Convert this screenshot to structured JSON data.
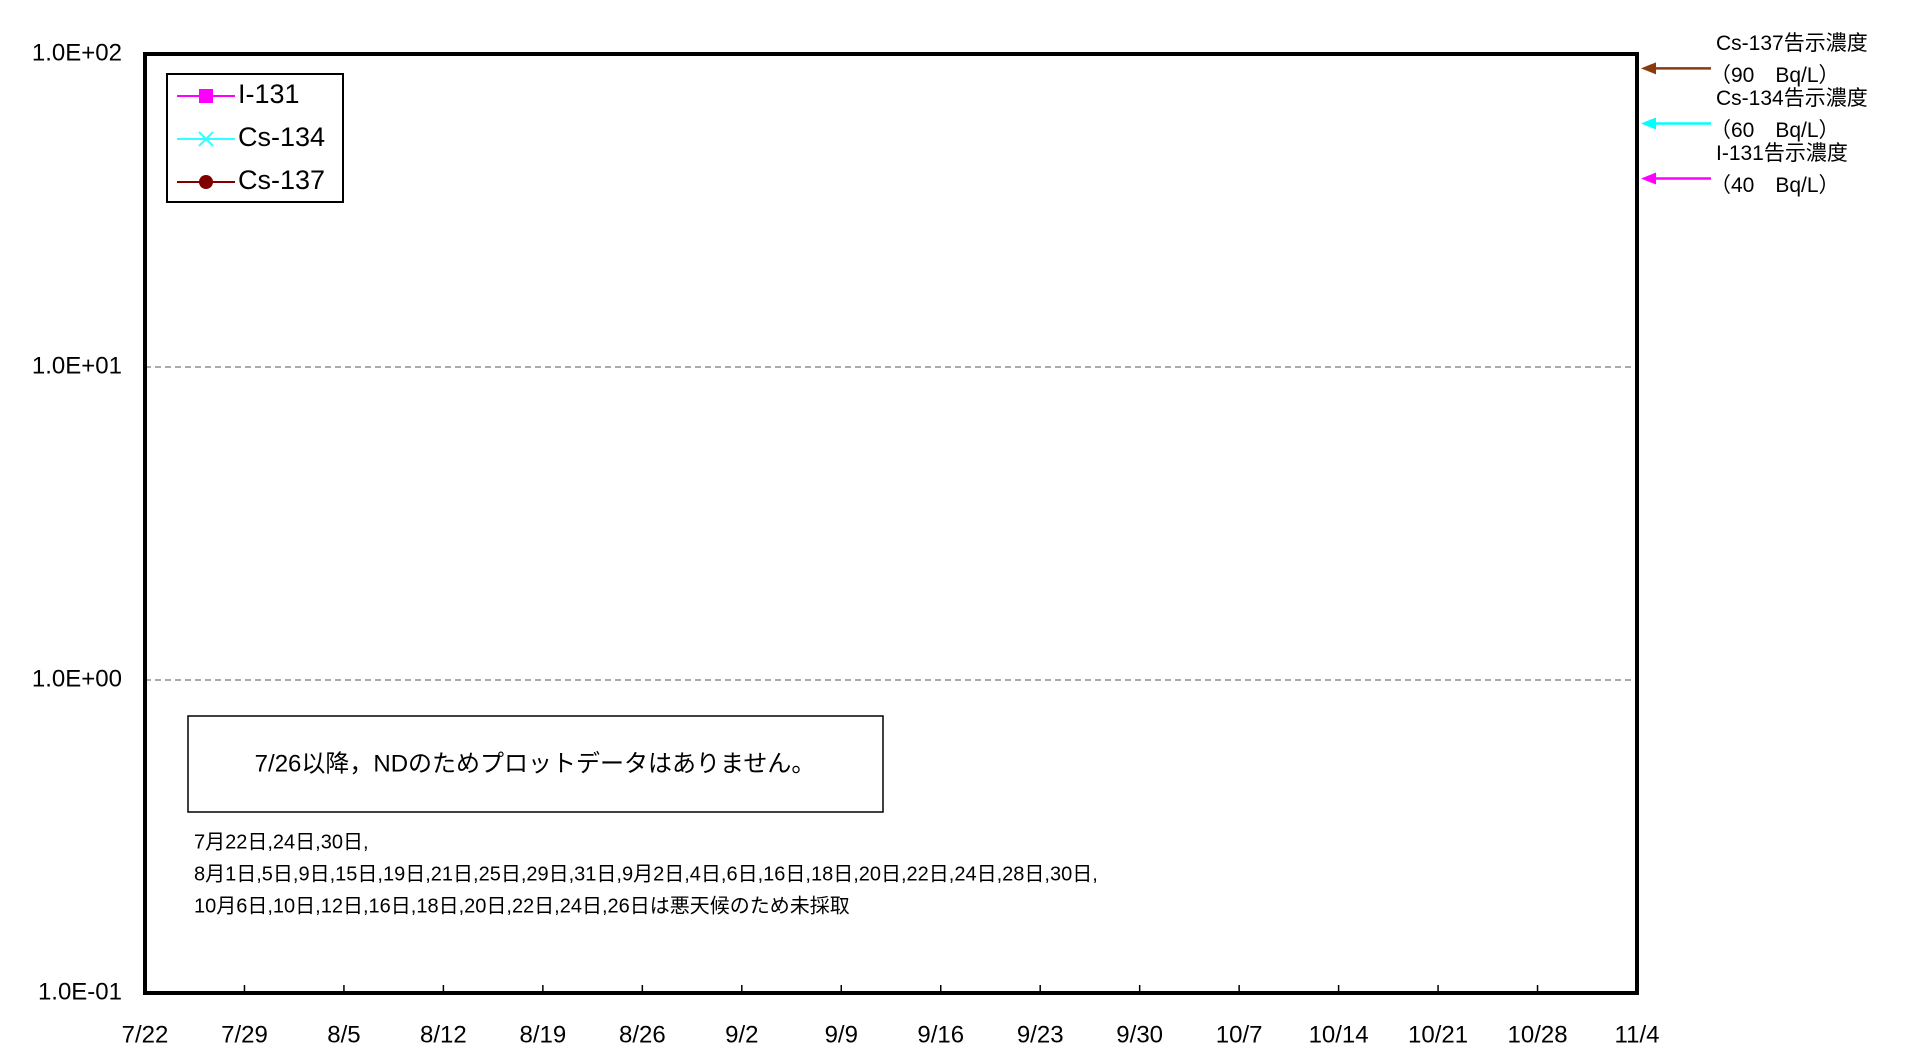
{
  "chart_data": {
    "type": "line",
    "categories": [
      "7/22",
      "7/29",
      "8/5",
      "8/12",
      "8/19",
      "8/26",
      "9/2",
      "9/9",
      "9/16",
      "9/23",
      "9/30",
      "10/7",
      "10/14",
      "10/21",
      "10/28",
      "11/4"
    ],
    "series": [
      {
        "name": "I-131",
        "color": "#ff00ff",
        "marker": "square",
        "values": [
          null,
          null,
          null,
          null,
          null,
          null,
          null,
          null,
          null,
          null,
          null,
          null,
          null,
          null,
          null,
          null
        ]
      },
      {
        "name": "Cs-134",
        "color": "#33ffff",
        "marker": "x",
        "values": [
          null,
          null,
          null,
          null,
          null,
          null,
          null,
          null,
          null,
          null,
          null,
          null,
          null,
          null,
          null,
          null
        ]
      },
      {
        "name": "Cs-137",
        "color": "#800000",
        "marker": "circle",
        "values": [
          null,
          null,
          null,
          null,
          null,
          null,
          null,
          null,
          null,
          null,
          null,
          null,
          null,
          null,
          null,
          null
        ]
      }
    ],
    "log_scale": true,
    "ylim": [
      0.1,
      100
    ],
    "yticks": [
      {
        "value": 0.1,
        "label": "1.0E-01"
      },
      {
        "value": 1,
        "label": "1.0E+00"
      },
      {
        "value": 10,
        "label": "1.0E+01"
      },
      {
        "value": 100,
        "label": "1.0E+02"
      }
    ],
    "grid": true,
    "legend": "upper left",
    "limits": [
      {
        "label": "Cs-137告示濃度",
        "sub": "（90　Bq/L）",
        "value": 90,
        "color": "#8b3a0f"
      },
      {
        "label": "Cs-134告示濃度",
        "sub": "（60　Bq/L）",
        "value": 60,
        "color": "#00ffff"
      },
      {
        "label": "I-131告示濃度",
        "sub": "（40　Bq/L）",
        "value": 40,
        "color": "#ff00ff"
      }
    ],
    "note": "7/26以降，NDのためプロットデータはありません。",
    "footnote": [
      "7月22日,24日,30日,",
      "8月1日,5日,9日,15日,19日,21日,25日,29日,31日,9月2日,4日,6日,16日,18日,20日,22日,24日,28日,30日,",
      "10月6日,10日,12日,16日,18日,20日,22日,24日,26日は悪天候のため未採取"
    ]
  }
}
